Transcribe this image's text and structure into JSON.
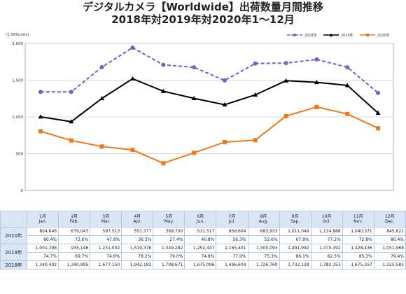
{
  "title_line1": "デジタルカメラ【Worldwide】出荷数量月間推移",
  "title_line2": "2018年対2019年対2020年1〜12月",
  "chart_data": {
    "type": "line",
    "ylabel": "(1,000units)",
    "ylim": [
      0,
      2000
    ],
    "yticks": [
      "0",
      "500",
      "1,000",
      "1,500",
      "2,000"
    ],
    "grid": true,
    "legend_position": "top-right",
    "categories": [
      "1月 Jan.",
      "2月 Feb.",
      "3月 Mar.",
      "4月 Apr.",
      "5月 May.",
      "6月 Jun.",
      "7月 Jul.",
      "8月 Aug.",
      "9月 Sep.",
      "10月 Oct.",
      "11月 Nov.",
      "12月 Dec."
    ],
    "series": [
      {
        "name": "2018年",
        "color": "#6666cc",
        "style": "dashed",
        "marker": "circle",
        "values": [
          1340.492,
          1340.995,
          1677.15,
          1942.182,
          1708.671,
          1675.096,
          1496.604,
          1726.76,
          1732.128,
          1782.353,
          1675.357,
          1325.583
        ]
      },
      {
        "name": "2019年",
        "color": "#000000",
        "style": "solid",
        "marker": "triangle",
        "values": [
          1001.398,
          935.148,
          1251.002,
          1519.378,
          1349.282,
          1252.447,
          1165.401,
          1300.093,
          1491.992,
          1470.392,
          1428.436,
          1051.968
        ]
      },
      {
        "name": "2020年",
        "color": "#f07818",
        "style": "solid",
        "marker": "square",
        "values": [
          804.646,
          679.043,
          597.513,
          551.377,
          369.73,
          511.517,
          656.604,
          683.933,
          1011.049,
          1134.888,
          1040.371,
          845.621
        ]
      }
    ]
  },
  "table": {
    "months": [
      {
        "jp": "1月",
        "en": "Jan."
      },
      {
        "jp": "2月",
        "en": "Feb."
      },
      {
        "jp": "3月",
        "en": "Mar."
      },
      {
        "jp": "4月",
        "en": "Apr."
      },
      {
        "jp": "5月",
        "en": "May."
      },
      {
        "jp": "6月",
        "en": "Jun."
      },
      {
        "jp": "7月",
        "en": "Jul."
      },
      {
        "jp": "8月",
        "en": "Aug."
      },
      {
        "jp": "9月",
        "en": "Sep."
      },
      {
        "jp": "10月",
        "en": "Oct."
      },
      {
        "jp": "11月",
        "en": "Nov."
      },
      {
        "jp": "12月",
        "en": "Dec."
      }
    ],
    "rows": [
      {
        "label": "2020年",
        "values": [
          "804,646",
          "679,043",
          "597,513",
          "551,377",
          "369,730",
          "511,517",
          "656,604",
          "683,933",
          "1,011,049",
          "1,134,888",
          "1,040,371",
          "845,621"
        ],
        "pct": [
          "80.4%",
          "72.6%",
          "47.8%",
          "36.3%",
          "27.4%",
          "40.8%",
          "56.3%",
          "52.6%",
          "67.8%",
          "77.2%",
          "72.8%",
          "80.4%"
        ]
      },
      {
        "label": "2019年",
        "values": [
          "1,001,398",
          "935,148",
          "1,251,002",
          "1,519,378",
          "1,349,282",
          "1,252,447",
          "1,165,401",
          "1,300,093",
          "1,491,992",
          "1,470,392",
          "1,428,436",
          "1,051,968"
        ],
        "pct": [
          "74.7%",
          "69.7%",
          "74.6%",
          "78.2%",
          "79.0%",
          "74.8%",
          "77.9%",
          "75.3%",
          "86.1%",
          "82.5%",
          "85.3%",
          "79.4%"
        ]
      },
      {
        "label": "2018年",
        "values": [
          "1,340,492",
          "1,340,995",
          "1,677,150",
          "1,942,182",
          "1,708,671",
          "1,675,096",
          "1,496,604",
          "1,726,760",
          "1,732,128",
          "1,782,353",
          "1,675,357",
          "1,325,583"
        ],
        "pct": []
      }
    ]
  }
}
